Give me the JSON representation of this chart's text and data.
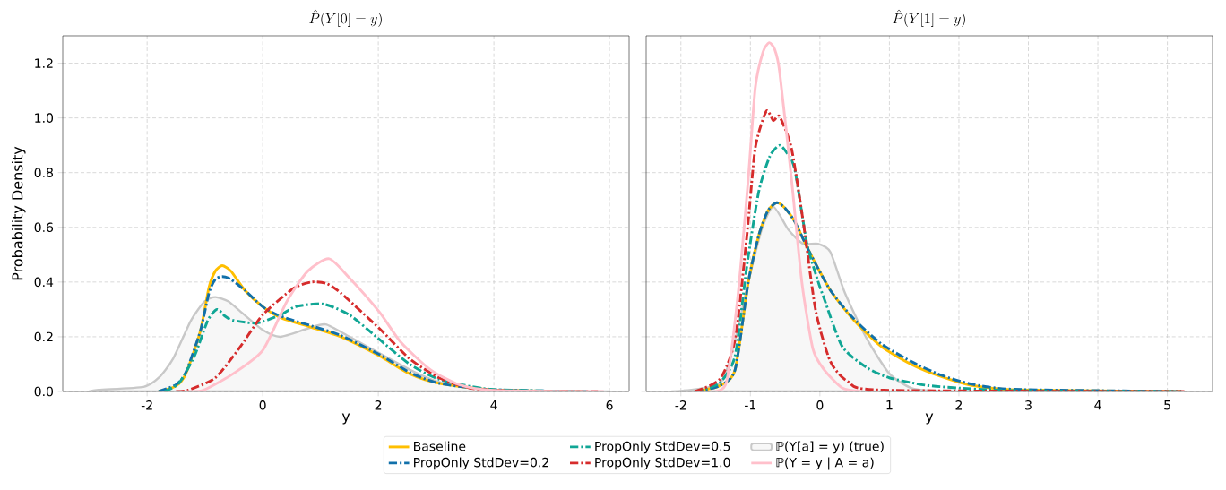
{
  "chart_data": [
    {
      "type": "line",
      "title": "\\hat{P}(Y[0] = y)",
      "xlabel": "y",
      "ylabel": "Probability Density",
      "xlim": [
        -3.46,
        6.34
      ],
      "ylim": [
        0,
        1.3
      ],
      "xticks": [
        -2,
        0,
        2,
        4,
        6
      ],
      "yticks": [
        {
          "value": 0,
          "label": "0.0"
        },
        {
          "value": 0.2,
          "label": "0.2"
        },
        {
          "value": 0.4,
          "label": "0.4"
        },
        {
          "value": 0.6,
          "label": "0.6"
        },
        {
          "value": 0.8,
          "label": "0.8"
        },
        {
          "value": 1.0,
          "label": "1.0"
        },
        {
          "value": 1.2,
          "label": "1.2"
        }
      ],
      "grid": true,
      "legend": "bottom",
      "series": [
        {
          "name": "Baseline",
          "color": "#ffbf00",
          "line_style": "solid",
          "x": [
            -1.8,
            -1.5,
            -1.33,
            -1.08,
            -0.93,
            -0.82,
            -0.7,
            -0.55,
            -0.31,
            0,
            0.31,
            0.84,
            1.35,
            2.02,
            2.54,
            3.05,
            3.94,
            5.5
          ],
          "values": [
            0,
            0.02,
            0.065,
            0.22,
            0.38,
            0.44,
            0.46,
            0.44,
            0.37,
            0.31,
            0.27,
            0.235,
            0.2,
            0.13,
            0.065,
            0.03,
            0.007,
            0
          ]
        },
        {
          "name": "PropOnly StdDev=0.2",
          "color": "#1170aa",
          "line_style": "dashdot",
          "x": [
            -1.8,
            -1.5,
            -1.33,
            -1.08,
            -0.93,
            -0.82,
            -0.7,
            -0.55,
            -0.31,
            0,
            0.31,
            0.84,
            1.35,
            2.02,
            2.54,
            3.05,
            3.94,
            5.6
          ],
          "values": [
            0,
            0.025,
            0.07,
            0.22,
            0.36,
            0.41,
            0.42,
            0.41,
            0.37,
            0.31,
            0.275,
            0.24,
            0.205,
            0.135,
            0.07,
            0.03,
            0.007,
            0
          ]
        },
        {
          "name": "PropOnly StdDev=0.5",
          "color": "#10a695",
          "line_style": "dashdot",
          "x": [
            -1.7,
            -1.45,
            -1.18,
            -0.95,
            -0.79,
            -0.65,
            -0.51,
            -0.1,
            0.31,
            0.57,
            1.04,
            1.5,
            2.02,
            2.54,
            3.05,
            3.94,
            5.6
          ],
          "values": [
            0,
            0.03,
            0.13,
            0.26,
            0.3,
            0.275,
            0.26,
            0.25,
            0.28,
            0.31,
            0.32,
            0.28,
            0.19,
            0.1,
            0.045,
            0.008,
            0
          ]
        },
        {
          "name": "PropOnly StdDev=1.0",
          "color": "#d62c2c",
          "line_style": "dashdot",
          "x": [
            -1.5,
            -1.29,
            -0.82,
            -0.4,
            0,
            0.52,
            0.84,
            1.1,
            1.35,
            2.02,
            2.54,
            3.05,
            3.57,
            4.2,
            5.8
          ],
          "values": [
            0,
            0.005,
            0.05,
            0.16,
            0.28,
            0.375,
            0.4,
            0.395,
            0.36,
            0.23,
            0.12,
            0.05,
            0.013,
            0.003,
            0
          ]
        },
        {
          "name": "ℙ(Y[a] = y) (true)",
          "type": "area",
          "color": "#c8c8c8",
          "line_style": "solid",
          "x": [
            -3.0,
            -2.84,
            -2.06,
            -1.8,
            -1.55,
            -1.24,
            -1.0,
            -0.82,
            -0.6,
            -0.4,
            0,
            0.31,
            0.78,
            1.09,
            1.5,
            2.02,
            2.54,
            3.05,
            3.94,
            6.0
          ],
          "values": [
            0,
            0.006,
            0.017,
            0.05,
            0.12,
            0.26,
            0.33,
            0.345,
            0.33,
            0.295,
            0.225,
            0.2,
            0.23,
            0.245,
            0.2,
            0.14,
            0.08,
            0.035,
            0.006,
            0
          ]
        },
        {
          "name": "ℙ(Y = y | A = a)",
          "color": "#ffc0cb",
          "line_style": "solid",
          "x": [
            -1.3,
            -1.02,
            -0.51,
            0,
            0.42,
            0.78,
            1.15,
            1.5,
            2.02,
            2.39,
            2.9,
            3.41,
            4.0,
            5.9
          ],
          "values": [
            0,
            0.005,
            0.065,
            0.15,
            0.33,
            0.44,
            0.485,
            0.415,
            0.29,
            0.18,
            0.08,
            0.024,
            0.004,
            0
          ]
        }
      ]
    },
    {
      "type": "line",
      "title": "\\hat{P}(Y[1] = y)",
      "xlabel": "y",
      "xlim": [
        -2.5,
        5.65
      ],
      "ylim": [
        0,
        1.3
      ],
      "xticks": [
        -2,
        -1,
        0,
        1,
        2,
        3,
        4,
        5
      ],
      "yticks": [
        {
          "value": 0,
          "label": null
        },
        {
          "value": 0.2,
          "label": null
        },
        {
          "value": 0.4,
          "label": null
        },
        {
          "value": 0.6,
          "label": null
        },
        {
          "value": 0.8,
          "label": null
        },
        {
          "value": 1.0,
          "label": null
        },
        {
          "value": 1.2,
          "label": null
        }
      ],
      "grid": true,
      "tick_labels": "x",
      "series": [
        {
          "color": "#ffbf00",
          "line_style": "solid",
          "x": [
            -1.8,
            -1.45,
            -1.22,
            -1.03,
            -0.88,
            -0.75,
            -0.62,
            -0.5,
            -0.36,
            -0.15,
            0.15,
            0.49,
            0.88,
            1.31,
            1.74,
            2.17,
            2.8,
            5.2
          ],
          "values": [
            0,
            0.02,
            0.08,
            0.4,
            0.57,
            0.66,
            0.69,
            0.67,
            0.62,
            0.51,
            0.37,
            0.26,
            0.165,
            0.1,
            0.055,
            0.023,
            0.006,
            0
          ]
        },
        {
          "color": "#1170aa",
          "line_style": "dashdot",
          "x": [
            -1.8,
            -1.45,
            -1.22,
            -1.03,
            -0.88,
            -0.75,
            -0.62,
            -0.5,
            -0.36,
            -0.15,
            0.15,
            0.49,
            0.88,
            1.31,
            1.74,
            2.17,
            2.8,
            5.2
          ],
          "values": [
            0,
            0.02,
            0.08,
            0.4,
            0.57,
            0.66,
            0.69,
            0.67,
            0.62,
            0.51,
            0.37,
            0.265,
            0.175,
            0.11,
            0.06,
            0.028,
            0.008,
            0
          ]
        },
        {
          "color": "#10a695",
          "line_style": "dashdot",
          "x": [
            -1.8,
            -1.45,
            -1.22,
            -1.05,
            -0.88,
            -0.72,
            -0.58,
            -0.47,
            -0.36,
            -0.19,
            -0.03,
            0.06,
            0.32,
            0.67,
            1.0,
            1.52,
            2.04,
            2.8,
            5.2
          ],
          "values": [
            0,
            0.03,
            0.13,
            0.46,
            0.73,
            0.86,
            0.9,
            0.87,
            0.81,
            0.545,
            0.405,
            0.34,
            0.165,
            0.088,
            0.05,
            0.023,
            0.012,
            0.003,
            0
          ]
        },
        {
          "color": "#d62c2c",
          "line_style": "dashdot",
          "x": [
            -1.8,
            -1.44,
            -1.22,
            -1.05,
            -0.93,
            -0.77,
            -0.67,
            -0.58,
            -0.41,
            -0.24,
            -0.06,
            0.15,
            0.41,
            0.92,
            5.28
          ],
          "values": [
            0,
            0.045,
            0.19,
            0.57,
            0.89,
            1.025,
            0.99,
            1.005,
            0.89,
            0.62,
            0.295,
            0.11,
            0.035,
            0.005,
            0
          ]
        },
        {
          "type": "area",
          "color": "#c8c8c8",
          "line_style": "solid",
          "x": [
            -2.13,
            -1.44,
            -1.22,
            -1.03,
            -0.84,
            -0.67,
            -0.45,
            -0.24,
            -0.03,
            0.15,
            0.36,
            0.67,
            1.0,
            1.31,
            1.6,
            2.5
          ],
          "values": [
            0,
            0.03,
            0.19,
            0.4,
            0.59,
            0.675,
            0.59,
            0.54,
            0.54,
            0.51,
            0.36,
            0.195,
            0.065,
            0.013,
            0.003,
            0
          ]
        },
        {
          "color": "#ffc0cb",
          "line_style": "solid",
          "x": [
            -1.6,
            -1.35,
            -1.18,
            -1.03,
            -0.93,
            -0.82,
            -0.73,
            -0.65,
            -0.58,
            -0.41,
            -0.26,
            -0.1,
            0.06,
            0.32,
            0.6
          ],
          "values": [
            0,
            0.03,
            0.35,
            0.78,
            1.11,
            1.24,
            1.275,
            1.25,
            1.17,
            0.78,
            0.4,
            0.155,
            0.08,
            0.013,
            0
          ]
        }
      ]
    }
  ]
}
